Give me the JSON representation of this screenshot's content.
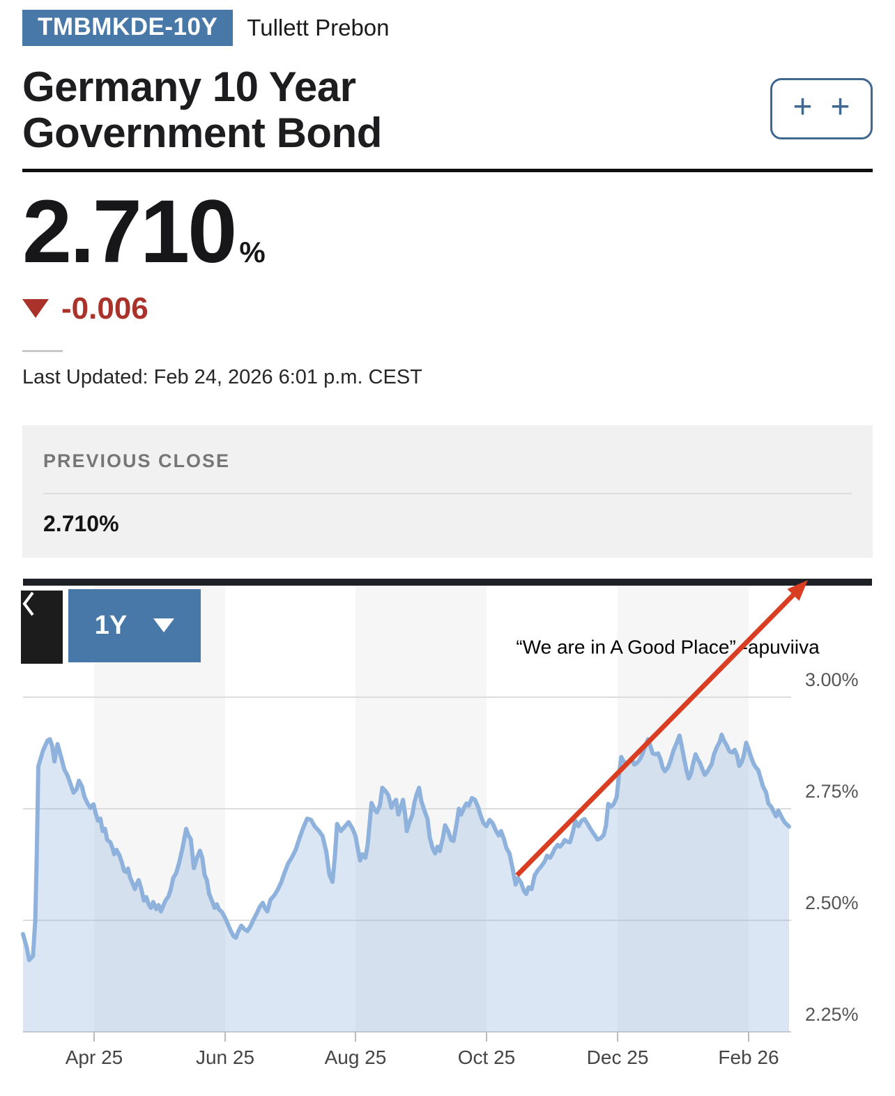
{
  "header": {
    "ticker": "TMBMKDE-10Y",
    "source": "Tullett Prebon",
    "title": "Germany 10 Year Government Bond",
    "add_symbol": "+"
  },
  "quote": {
    "price": "2.710",
    "unit": "%",
    "change": "-0.006",
    "direction": "down",
    "last_updated": "Last Updated: Feb 24, 2026 6:01 p.m. CEST"
  },
  "previous_close": {
    "label": "PREVIOUS CLOSE",
    "value": "2.710%"
  },
  "chart_controls": {
    "range": "1Y"
  },
  "theme": {
    "accent_blue": "#4878a8",
    "change_red": "#a9332a",
    "line_blue": "#8fb2dc",
    "arrow_red": "#d93d22"
  },
  "chart_data": {
    "type": "area",
    "title": "",
    "xlabel": "",
    "ylabel": "",
    "ylim": [
      2.25,
      3.25
    ],
    "grid": true,
    "legend": false,
    "band_color": "#f6f6f6",
    "grid_color": "#dcdcdc",
    "axis_color": "#cccccc",
    "tick_color": "#bbbbbb",
    "line_color": "#8fb2dc",
    "fill_color": "rgba(143,178,220,0.33)",
    "arrow_color": "#d93d22",
    "bar_color": "#1d2024",
    "yticks": [
      {
        "value": 3.0,
        "label": "3.00%"
      },
      {
        "value": 2.75,
        "label": "2.75%"
      },
      {
        "value": 2.5,
        "label": "2.50%"
      },
      {
        "value": 2.25,
        "label": "2.25%"
      }
    ],
    "xticks": [
      {
        "pos": 0.0928,
        "label": "Apr 25"
      },
      {
        "pos": 0.2639,
        "label": "Jun 25"
      },
      {
        "pos": 0.434,
        "label": "Aug 25"
      },
      {
        "pos": 0.6051,
        "label": "Oct 25"
      },
      {
        "pos": 0.7762,
        "label": "Dec 25"
      },
      {
        "pos": 0.9472,
        "label": "Feb 26"
      }
    ],
    "shaded_bands": [
      [
        0.0928,
        0.2639
      ],
      [
        0.434,
        0.6051
      ],
      [
        0.7762,
        0.9472
      ]
    ],
    "annotation": {
      "text": "“We are in A Good Place” -apuviiva",
      "t": 0.8417,
      "value": 3.109
    },
    "arrow": {
      "from": [
        0.645,
        2.601
      ],
      "to": [
        1.0246,
        3.2625
      ]
    },
    "series": [
      {
        "name": "Germany 10 Year Government Bond yield (%)",
        "points": [
          [
            0.0,
            2.469
          ],
          [
            0.005,
            2.438
          ],
          [
            0.008,
            2.411
          ],
          [
            0.013,
            2.42
          ],
          [
            0.016,
            2.5
          ],
          [
            0.018,
            2.65
          ],
          [
            0.02,
            2.845
          ],
          [
            0.026,
            2.88
          ],
          [
            0.032,
            2.903
          ],
          [
            0.035,
            2.906
          ],
          [
            0.038,
            2.891
          ],
          [
            0.041,
            2.856
          ],
          [
            0.045,
            2.895
          ],
          [
            0.05,
            2.864
          ],
          [
            0.054,
            2.838
          ],
          [
            0.058,
            2.825
          ],
          [
            0.062,
            2.806
          ],
          [
            0.066,
            2.786
          ],
          [
            0.07,
            2.794
          ],
          [
            0.073,
            2.813
          ],
          [
            0.077,
            2.8
          ],
          [
            0.08,
            2.778
          ],
          [
            0.084,
            2.763
          ],
          [
            0.088,
            2.752
          ],
          [
            0.092,
            2.76
          ],
          [
            0.095,
            2.739
          ],
          [
            0.098,
            2.723
          ],
          [
            0.101,
            2.728
          ],
          [
            0.104,
            2.7
          ],
          [
            0.107,
            2.705
          ],
          [
            0.11,
            2.68
          ],
          [
            0.114,
            2.675
          ],
          [
            0.117,
            2.661
          ],
          [
            0.119,
            2.648
          ],
          [
            0.122,
            2.658
          ],
          [
            0.126,
            2.645
          ],
          [
            0.129,
            2.63
          ],
          [
            0.132,
            2.611
          ],
          [
            0.135,
            2.608
          ],
          [
            0.137,
            2.616
          ],
          [
            0.14,
            2.595
          ],
          [
            0.143,
            2.583
          ],
          [
            0.146,
            2.57
          ],
          [
            0.148,
            2.58
          ],
          [
            0.151,
            2.59
          ],
          [
            0.154,
            2.573
          ],
          [
            0.158,
            2.544
          ],
          [
            0.161,
            2.552
          ],
          [
            0.164,
            2.536
          ],
          [
            0.167,
            2.528
          ],
          [
            0.17,
            2.541
          ],
          [
            0.174,
            2.525
          ],
          [
            0.177,
            2.534
          ],
          [
            0.18,
            2.52
          ],
          [
            0.183,
            2.532
          ],
          [
            0.186,
            2.544
          ],
          [
            0.19,
            2.554
          ],
          [
            0.193,
            2.57
          ],
          [
            0.196,
            2.594
          ],
          [
            0.2,
            2.606
          ],
          [
            0.204,
            2.63
          ],
          [
            0.208,
            2.66
          ],
          [
            0.213,
            2.705
          ],
          [
            0.216,
            2.69
          ],
          [
            0.219,
            2.682
          ],
          [
            0.223,
            2.617
          ],
          [
            0.227,
            2.64
          ],
          [
            0.231,
            2.656
          ],
          [
            0.234,
            2.64
          ],
          [
            0.237,
            2.602
          ],
          [
            0.24,
            2.59
          ],
          [
            0.243,
            2.559
          ],
          [
            0.247,
            2.542
          ],
          [
            0.25,
            2.528
          ],
          [
            0.253,
            2.536
          ],
          [
            0.256,
            2.524
          ],
          [
            0.26,
            2.518
          ],
          [
            0.264,
            2.505
          ],
          [
            0.268,
            2.489
          ],
          [
            0.271,
            2.477
          ],
          [
            0.275,
            2.464
          ],
          [
            0.278,
            2.461
          ],
          [
            0.281,
            2.475
          ],
          [
            0.285,
            2.488
          ],
          [
            0.289,
            2.48
          ],
          [
            0.293,
            2.476
          ],
          [
            0.297,
            2.487
          ],
          [
            0.301,
            2.502
          ],
          [
            0.305,
            2.515
          ],
          [
            0.309,
            2.53
          ],
          [
            0.313,
            2.539
          ],
          [
            0.316,
            2.527
          ],
          [
            0.319,
            2.52
          ],
          [
            0.323,
            2.546
          ],
          [
            0.328,
            2.556
          ],
          [
            0.332,
            2.567
          ],
          [
            0.337,
            2.585
          ],
          [
            0.341,
            2.605
          ],
          [
            0.346,
            2.627
          ],
          [
            0.351,
            2.641
          ],
          [
            0.356,
            2.658
          ],
          [
            0.361,
            2.684
          ],
          [
            0.366,
            2.708
          ],
          [
            0.371,
            2.728
          ],
          [
            0.376,
            2.725
          ],
          [
            0.381,
            2.71
          ],
          [
            0.386,
            2.701
          ],
          [
            0.391,
            2.689
          ],
          [
            0.396,
            2.653
          ],
          [
            0.4,
            2.602
          ],
          [
            0.404,
            2.586
          ],
          [
            0.407,
            2.64
          ],
          [
            0.41,
            2.716
          ],
          [
            0.415,
            2.7
          ],
          [
            0.42,
            2.71
          ],
          [
            0.425,
            2.72
          ],
          [
            0.43,
            2.706
          ],
          [
            0.434,
            2.689
          ],
          [
            0.437,
            2.661
          ],
          [
            0.44,
            2.634
          ],
          [
            0.443,
            2.648
          ],
          [
            0.447,
            2.64
          ],
          [
            0.45,
            2.67
          ],
          [
            0.455,
            2.763
          ],
          [
            0.459,
            2.748
          ],
          [
            0.462,
            2.742
          ],
          [
            0.466,
            2.758
          ],
          [
            0.469,
            2.797
          ],
          [
            0.473,
            2.79
          ],
          [
            0.477,
            2.78
          ],
          [
            0.481,
            2.752
          ],
          [
            0.484,
            2.764
          ],
          [
            0.487,
            2.77
          ],
          [
            0.49,
            2.737
          ],
          [
            0.494,
            2.758
          ],
          [
            0.496,
            2.77
          ],
          [
            0.499,
            2.735
          ],
          [
            0.501,
            2.7
          ],
          [
            0.504,
            2.718
          ],
          [
            0.508,
            2.735
          ],
          [
            0.511,
            2.765
          ],
          [
            0.514,
            2.783
          ],
          [
            0.517,
            2.797
          ],
          [
            0.52,
            2.767
          ],
          [
            0.524,
            2.746
          ],
          [
            0.528,
            2.727
          ],
          [
            0.531,
            2.685
          ],
          [
            0.535,
            2.66
          ],
          [
            0.538,
            2.65
          ],
          [
            0.541,
            2.665
          ],
          [
            0.544,
            2.655
          ],
          [
            0.548,
            2.684
          ],
          [
            0.551,
            2.713
          ],
          [
            0.555,
            2.7
          ],
          [
            0.559,
            2.68
          ],
          [
            0.562,
            2.678
          ],
          [
            0.566,
            2.716
          ],
          [
            0.569,
            2.75
          ],
          [
            0.572,
            2.737
          ],
          [
            0.576,
            2.753
          ],
          [
            0.579,
            2.762
          ],
          [
            0.582,
            2.757
          ],
          [
            0.586,
            2.774
          ],
          [
            0.59,
            2.77
          ],
          [
            0.594,
            2.754
          ],
          [
            0.597,
            2.737
          ],
          [
            0.601,
            2.718
          ],
          [
            0.605,
            2.711
          ],
          [
            0.609,
            2.725
          ],
          [
            0.613,
            2.718
          ],
          [
            0.617,
            2.702
          ],
          [
            0.621,
            2.69
          ],
          [
            0.624,
            2.7
          ],
          [
            0.628,
            2.681
          ],
          [
            0.631,
            2.662
          ],
          [
            0.635,
            2.65
          ],
          [
            0.639,
            2.617
          ],
          [
            0.643,
            2.58
          ],
          [
            0.646,
            2.595
          ],
          [
            0.65,
            2.585
          ],
          [
            0.654,
            2.566
          ],
          [
            0.657,
            2.559
          ],
          [
            0.66,
            2.574
          ],
          [
            0.664,
            2.57
          ],
          [
            0.668,
            2.601
          ],
          [
            0.672,
            2.612
          ],
          [
            0.677,
            2.622
          ],
          [
            0.681,
            2.632
          ],
          [
            0.684,
            2.645
          ],
          [
            0.688,
            2.64
          ],
          [
            0.691,
            2.649
          ],
          [
            0.694,
            2.66
          ],
          [
            0.698,
            2.669
          ],
          [
            0.701,
            2.665
          ],
          [
            0.705,
            2.673
          ],
          [
            0.707,
            2.68
          ],
          [
            0.711,
            2.676
          ],
          [
            0.714,
            2.675
          ],
          [
            0.718,
            2.699
          ],
          [
            0.721,
            2.723
          ],
          [
            0.725,
            2.711
          ],
          [
            0.729,
            2.723
          ],
          [
            0.733,
            2.727
          ],
          [
            0.737,
            2.716
          ],
          [
            0.741,
            2.704
          ],
          [
            0.745,
            2.694
          ],
          [
            0.75,
            2.681
          ],
          [
            0.754,
            2.684
          ],
          [
            0.758,
            2.691
          ],
          [
            0.761,
            2.712
          ],
          [
            0.764,
            2.761
          ],
          [
            0.768,
            2.755
          ],
          [
            0.771,
            2.76
          ],
          [
            0.775,
            2.776
          ],
          [
            0.778,
            2.826
          ],
          [
            0.781,
            2.866
          ],
          [
            0.784,
            2.856
          ],
          [
            0.788,
            2.852
          ],
          [
            0.792,
            2.857
          ],
          [
            0.795,
            2.86
          ],
          [
            0.798,
            2.849
          ],
          [
            0.801,
            2.852
          ],
          [
            0.805,
            2.86
          ],
          [
            0.808,
            2.87
          ],
          [
            0.812,
            2.888
          ],
          [
            0.816,
            2.906
          ],
          [
            0.819,
            2.89
          ],
          [
            0.822,
            2.874
          ],
          [
            0.826,
            2.872
          ],
          [
            0.829,
            2.874
          ],
          [
            0.832,
            2.862
          ],
          [
            0.835,
            2.842
          ],
          [
            0.838,
            2.834
          ],
          [
            0.842,
            2.843
          ],
          [
            0.845,
            2.857
          ],
          [
            0.849,
            2.88
          ],
          [
            0.853,
            2.896
          ],
          [
            0.857,
            2.914
          ],
          [
            0.86,
            2.89
          ],
          [
            0.863,
            2.863
          ],
          [
            0.866,
            2.837
          ],
          [
            0.869,
            2.818
          ],
          [
            0.872,
            2.829
          ],
          [
            0.875,
            2.853
          ],
          [
            0.878,
            2.872
          ],
          [
            0.881,
            2.861
          ],
          [
            0.884,
            2.852
          ],
          [
            0.887,
            2.838
          ],
          [
            0.89,
            2.826
          ],
          [
            0.893,
            2.832
          ],
          [
            0.896,
            2.841
          ],
          [
            0.899,
            2.85
          ],
          [
            0.902,
            2.872
          ],
          [
            0.906,
            2.889
          ],
          [
            0.909,
            2.898
          ],
          [
            0.912,
            2.916
          ],
          [
            0.915,
            2.903
          ],
          [
            0.919,
            2.891
          ],
          [
            0.922,
            2.879
          ],
          [
            0.926,
            2.876
          ],
          [
            0.929,
            2.882
          ],
          [
            0.932,
            2.87
          ],
          [
            0.935,
            2.846
          ],
          [
            0.938,
            2.854
          ],
          [
            0.941,
            2.87
          ],
          [
            0.944,
            2.898
          ],
          [
            0.947,
            2.884
          ],
          [
            0.95,
            2.868
          ],
          [
            0.954,
            2.85
          ],
          [
            0.957,
            2.842
          ],
          [
            0.96,
            2.836
          ],
          [
            0.963,
            2.818
          ],
          [
            0.966,
            2.8
          ],
          [
            0.97,
            2.787
          ],
          [
            0.973,
            2.762
          ],
          [
            0.977,
            2.754
          ],
          [
            0.98,
            2.743
          ],
          [
            0.983,
            2.733
          ],
          [
            0.986,
            2.746
          ],
          [
            0.989,
            2.736
          ],
          [
            0.992,
            2.726
          ],
          [
            0.995,
            2.718
          ],
          [
            1.0,
            2.71
          ]
        ]
      }
    ]
  }
}
